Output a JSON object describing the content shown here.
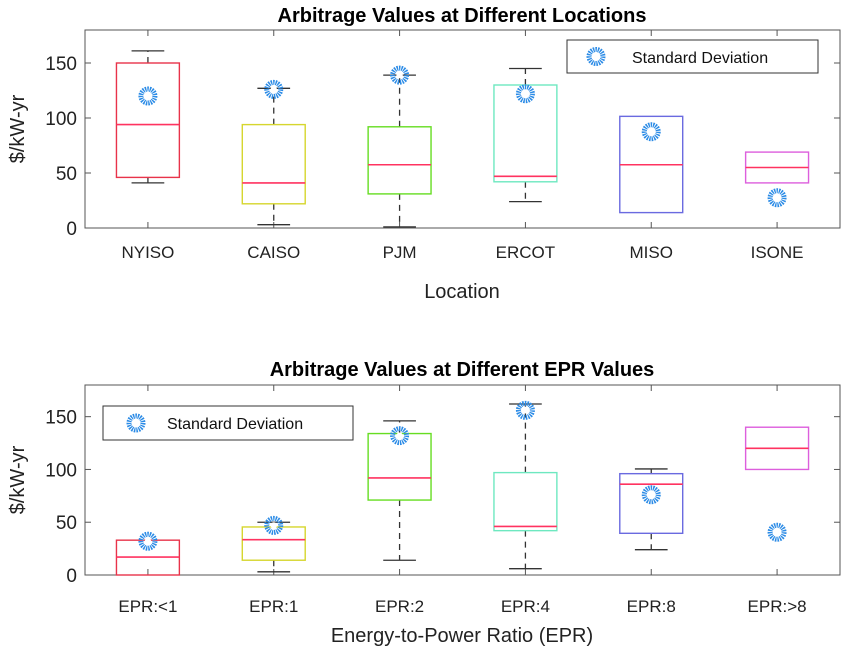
{
  "chart_data": [
    {
      "type": "box",
      "title": "Arbitrage Values at Different Locations",
      "xlabel": "Location",
      "ylabel": "$/kW-yr",
      "ylim": [
        0,
        180
      ],
      "yticks": [
        0,
        50,
        100,
        150
      ],
      "grid": false,
      "legend": {
        "label": "Standard Deviation",
        "placement": "top-right"
      },
      "categories": [
        "NYISO",
        "CAISO",
        "PJM",
        "ERCOT",
        "MISO",
        "ISONE"
      ],
      "box_colors": [
        "#e8334a",
        "#d6d62e",
        "#66dd22",
        "#6ee8c0",
        "#6a6ae0",
        "#dd5fdd"
      ],
      "median_color": "#ff3360",
      "marker_color": "#2b8be6",
      "boxes": [
        {
          "whisker_low": 41,
          "q1": 46,
          "median": 94,
          "q3": 150,
          "whisker_high": 161
        },
        {
          "whisker_low": 3,
          "q1": 22,
          "median": 41,
          "q3": 94,
          "whisker_high": 127
        },
        {
          "whisker_low": 1,
          "q1": 31,
          "median": 57.5,
          "q3": 92,
          "whisker_high": 139
        },
        {
          "whisker_low": 24,
          "q1": 42,
          "median": 47,
          "q3": 130,
          "whisker_high": 145
        },
        {
          "whisker_low": null,
          "q1": 14,
          "median": 57.5,
          "q3": 101.5,
          "whisker_high": null
        },
        {
          "whisker_low": null,
          "q1": 41,
          "median": 55,
          "q3": 69,
          "whisker_high": null
        }
      ],
      "standard_deviation": [
        120,
        126,
        139,
        122,
        87.5,
        27.5
      ]
    },
    {
      "type": "box",
      "title": "Arbitrage Values at Different EPR Values",
      "xlabel": "Energy-to-Power Ratio (EPR)",
      "ylabel": "$/kW-yr",
      "ylim": [
        0,
        180
      ],
      "yticks": [
        0,
        50,
        100,
        150
      ],
      "grid": false,
      "legend": {
        "label": "Standard Deviation",
        "placement": "top-left"
      },
      "categories": [
        "EPR:<1",
        "EPR:1",
        "EPR:2",
        "EPR:4",
        "EPR:8",
        "EPR:>8"
      ],
      "box_colors": [
        "#e8334a",
        "#d6d62e",
        "#66dd22",
        "#6ee8c0",
        "#6a6ae0",
        "#dd5fdd"
      ],
      "median_color": "#ff3360",
      "marker_color": "#2b8be6",
      "boxes": [
        {
          "whisker_low": null,
          "q1": 0,
          "median": 17,
          "q3": 33,
          "whisker_high": null
        },
        {
          "whisker_low": 3,
          "q1": 14,
          "median": 33.5,
          "q3": 45.5,
          "whisker_high": 50
        },
        {
          "whisker_low": 14,
          "q1": 71,
          "median": 92,
          "q3": 134,
          "whisker_high": 146
        },
        {
          "whisker_low": 6,
          "q1": 42,
          "median": 46,
          "q3": 97,
          "whisker_high": 162
        },
        {
          "whisker_low": 24,
          "q1": 39.5,
          "median": 86,
          "q3": 96,
          "whisker_high": 100.5
        },
        {
          "whisker_low": null,
          "q1": 100,
          "median": 120,
          "q3": 140,
          "whisker_high": null
        }
      ],
      "standard_deviation": [
        32,
        47,
        132,
        156,
        76,
        40.5
      ]
    }
  ]
}
